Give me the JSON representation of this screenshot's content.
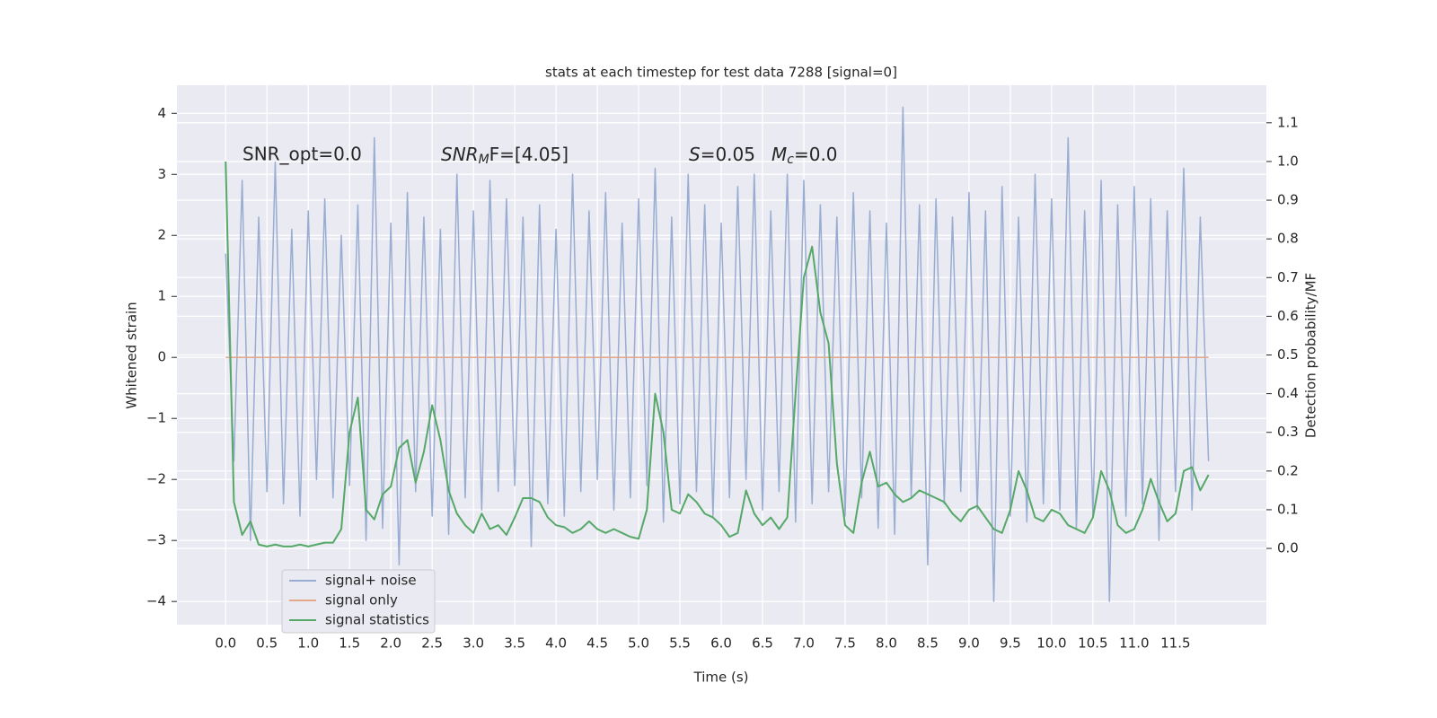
{
  "chart_data": {
    "type": "line",
    "title": "stats at each timestep for test data 7288 [signal=0]",
    "xlabel": "Time (s)",
    "ylabel": "Whitened strain",
    "y2label": "Detection probability/MF",
    "annotations": [
      "SNR_opt=0.0",
      [
        "SNR",
        "M",
        "F=[4.05]"
      ],
      [
        "S",
        "",
        "=0.05"
      ],
      [
        "M",
        "c",
        "=0.0"
      ]
    ],
    "x": [
      0,
      0.1,
      0.2,
      0.3,
      0.4,
      0.5,
      0.6,
      0.7,
      0.8,
      0.9,
      1,
      1.1,
      1.2,
      1.3,
      1.4,
      1.5,
      1.6,
      1.7,
      1.8,
      1.9,
      2,
      2.1,
      2.2,
      2.3,
      2.4,
      2.5,
      2.6,
      2.7,
      2.8,
      2.9,
      3,
      3.1,
      3.2,
      3.3,
      3.4,
      3.5,
      3.6,
      3.7,
      3.8,
      3.9,
      4,
      4.1,
      4.2,
      4.3,
      4.4,
      4.5,
      4.6,
      4.7,
      4.8,
      4.9,
      5,
      5.1,
      5.2,
      5.3,
      5.4,
      5.5,
      5.6,
      5.7,
      5.8,
      5.9,
      6,
      6.1,
      6.2,
      6.3,
      6.4,
      6.5,
      6.6,
      6.7,
      6.8,
      6.9,
      7,
      7.1,
      7.2,
      7.3,
      7.4,
      7.5,
      7.6,
      7.7,
      7.8,
      7.9,
      8,
      8.1,
      8.2,
      8.3,
      8.4,
      8.5,
      8.6,
      8.7,
      8.8,
      8.9,
      9,
      9.1,
      9.2,
      9.3,
      9.4,
      9.5,
      9.6,
      9.7,
      9.8,
      9.9,
      10,
      10.1,
      10.2,
      10.3,
      10.4,
      10.5,
      10.6,
      10.7,
      10.8,
      10.9,
      11,
      11.1,
      11.2,
      11.3,
      11.4,
      11.5,
      11.6,
      11.7,
      11.8,
      11.9
    ],
    "series": [
      {
        "name": "signal+ noise",
        "color": "#99acd1",
        "values": [
          1.7,
          -1.7,
          2.9,
          -3.0,
          2.3,
          -2.2,
          3.2,
          -2.4,
          2.1,
          -2.6,
          2.4,
          -2.0,
          2.6,
          -2.3,
          2.0,
          -2.1,
          2.5,
          -3.0,
          3.6,
          -2.8,
          2.2,
          -3.4,
          2.7,
          -2.2,
          2.3,
          -2.6,
          2.1,
          -2.9,
          3.0,
          -2.3,
          2.4,
          -2.5,
          2.9,
          -2.2,
          2.6,
          -2.1,
          2.3,
          -3.1,
          2.5,
          -2.4,
          2.1,
          -2.6,
          3.0,
          -2.2,
          2.4,
          -2.0,
          2.7,
          -2.5,
          2.2,
          -2.3,
          2.6,
          -2.1,
          3.1,
          -2.7,
          2.3,
          -2.4,
          3.0,
          -2.2,
          2.5,
          -2.6,
          2.2,
          -2.3,
          2.8,
          -2.0,
          3.0,
          -2.5,
          2.4,
          -2.2,
          3.0,
          -2.7,
          2.9,
          -2.4,
          2.5,
          -2.2,
          2.3,
          -2.6,
          2.7,
          -2.3,
          2.4,
          -2.8,
          2.2,
          -2.9,
          4.1,
          -2.3,
          2.5,
          -3.4,
          2.6,
          -2.4,
          2.3,
          -2.2,
          2.7,
          -2.5,
          2.4,
          -4.0,
          2.8,
          -2.6,
          2.3,
          -2.7,
          3.0,
          -2.4,
          2.6,
          -2.5,
          3.6,
          -2.8,
          2.4,
          -2.6,
          2.9,
          -4.0,
          2.5,
          -2.6,
          2.8,
          -2.4,
          2.6,
          -3.0,
          2.4,
          -2.2,
          3.1,
          -2.5,
          2.3,
          -1.7
        ]
      },
      {
        "name": "signal only",
        "color": "#e5a98a",
        "values": [
          0,
          0,
          0,
          0,
          0,
          0,
          0,
          0,
          0,
          0,
          0,
          0,
          0,
          0,
          0,
          0,
          0,
          0,
          0,
          0,
          0,
          0,
          0,
          0,
          0,
          0,
          0,
          0,
          0,
          0,
          0,
          0,
          0,
          0,
          0,
          0,
          0,
          0,
          0,
          0,
          0,
          0,
          0,
          0,
          0,
          0,
          0,
          0,
          0,
          0,
          0,
          0,
          0,
          0,
          0,
          0,
          0,
          0,
          0,
          0,
          0,
          0,
          0,
          0,
          0,
          0,
          0,
          0,
          0,
          0,
          0,
          0,
          0,
          0,
          0,
          0,
          0,
          0,
          0,
          0,
          0,
          0,
          0,
          0,
          0,
          0,
          0,
          0,
          0,
          0,
          0,
          0,
          0,
          0,
          0,
          0,
          0,
          0,
          0,
          0,
          0,
          0,
          0,
          0,
          0,
          0,
          0,
          0,
          0,
          0,
          0,
          0,
          0,
          0,
          0,
          0,
          0,
          0,
          0,
          0
        ]
      },
      {
        "name": "signal statistics",
        "color": "#55a868",
        "axis": "y2",
        "values": [
          1.0,
          0.12,
          0.035,
          0.07,
          0.01,
          0.005,
          0.01,
          0.005,
          0.005,
          0.01,
          0.005,
          0.01,
          0.015,
          0.015,
          0.05,
          0.3,
          0.39,
          0.1,
          0.075,
          0.14,
          0.16,
          0.26,
          0.28,
          0.17,
          0.25,
          0.37,
          0.28,
          0.15,
          0.09,
          0.06,
          0.04,
          0.09,
          0.05,
          0.06,
          0.035,
          0.08,
          0.13,
          0.13,
          0.12,
          0.08,
          0.06,
          0.055,
          0.04,
          0.05,
          0.07,
          0.05,
          0.04,
          0.05,
          0.04,
          0.03,
          0.025,
          0.1,
          0.4,
          0.3,
          0.1,
          0.09,
          0.14,
          0.12,
          0.09,
          0.08,
          0.06,
          0.03,
          0.04,
          0.15,
          0.09,
          0.06,
          0.08,
          0.05,
          0.08,
          0.4,
          0.7,
          0.78,
          0.61,
          0.53,
          0.22,
          0.06,
          0.04,
          0.17,
          0.25,
          0.16,
          0.17,
          0.14,
          0.12,
          0.13,
          0.15,
          0.14,
          0.13,
          0.12,
          0.09,
          0.07,
          0.1,
          0.11,
          0.08,
          0.05,
          0.04,
          0.1,
          0.2,
          0.15,
          0.08,
          0.07,
          0.1,
          0.09,
          0.06,
          0.05,
          0.04,
          0.08,
          0.2,
          0.15,
          0.06,
          0.04,
          0.05,
          0.1,
          0.18,
          0.12,
          0.07,
          0.09,
          0.2,
          0.21,
          0.15,
          0.19
        ]
      }
    ],
    "xlim": [
      -0.59,
      12.6
    ],
    "xticks": [
      {
        "value": 0,
        "label": "0.0"
      },
      0.5,
      {
        "value": 1,
        "label": "1.0"
      },
      1.5,
      {
        "value": 2,
        "label": "2.0"
      },
      2.5,
      {
        "value": 3,
        "label": "3.0"
      },
      3.5,
      {
        "value": 4,
        "label": "4.0"
      },
      4.5,
      {
        "value": 5,
        "label": "5.0"
      },
      5.5,
      {
        "value": 6,
        "label": "6.0"
      },
      6.5,
      {
        "value": 7,
        "label": "7.0"
      },
      7.5,
      {
        "value": 8,
        "label": "8.0"
      },
      8.5,
      {
        "value": 9,
        "label": "9.0"
      },
      9.5,
      {
        "value": 10,
        "label": "10.0"
      },
      10.5,
      {
        "value": 11,
        "label": "11.0"
      },
      11.5
    ],
    "ylim": [
      -4.38,
      4.46
    ],
    "yticks": [
      {
        "value": -4,
        "label": "−4"
      },
      {
        "value": -3,
        "label": "−3"
      },
      {
        "value": -2,
        "label": "−2"
      },
      {
        "value": -1,
        "label": "−1"
      },
      0,
      1,
      2,
      3,
      4
    ],
    "y2lim": [
      -0.197,
      1.197
    ],
    "y2ticks": [
      {
        "value": 0,
        "label": "0.0"
      },
      0.1,
      0.2,
      0.3,
      0.4,
      0.5,
      0.6,
      0.7,
      0.8,
      0.9,
      {
        "value": 1,
        "label": "1.0"
      },
      1.1
    ],
    "grid": true,
    "legend": "lower left"
  }
}
